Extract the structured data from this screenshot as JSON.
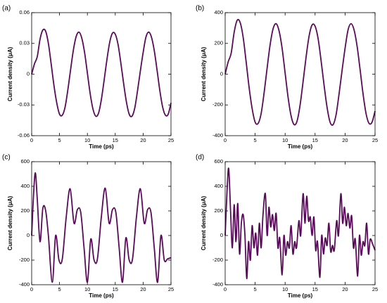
{
  "chart_data": [
    {
      "type": "line",
      "label": "(a)",
      "xlabel": "Time (ps)",
      "ylabel": "Current density (μA)",
      "color": "#5a0a5a",
      "x": [
        0,
        0.5,
        1,
        1.5,
        2,
        2.5,
        3,
        3.5,
        4,
        4.5,
        5,
        5.5,
        6,
        6.5,
        7,
        7.5,
        8,
        8.5,
        9,
        9.5,
        10,
        10.5,
        11,
        11.5,
        12,
        12.5,
        13,
        13.5,
        14,
        14.5,
        15,
        15.5,
        16,
        16.5,
        17,
        17.5,
        18,
        18.5,
        19,
        19.5,
        20,
        20.5,
        21,
        21.5,
        22,
        22.5,
        23,
        23.5,
        24,
        24.5,
        25
      ],
      "values": [
        0,
        0.01,
        0.017,
        0.034,
        0.043,
        0.042,
        0.03,
        0.01,
        -0.011,
        -0.028,
        -0.039,
        -0.04,
        -0.032,
        -0.015,
        0.005,
        0.024,
        0.037,
        0.041,
        0.035,
        0.021,
        0.001,
        -0.019,
        -0.034,
        -0.041,
        -0.038,
        -0.025,
        -0.006,
        0.014,
        0.031,
        0.04,
        0.039,
        0.029,
        0.011,
        -0.009,
        -0.027,
        -0.039,
        -0.041,
        -0.033,
        -0.016,
        0.003,
        0.021,
        0.036,
        0.041,
        0.036,
        0.023,
        0.004,
        -0.016,
        -0.032,
        -0.04,
        -0.039,
        -0.028
      ],
      "xlim": [
        0,
        25
      ],
      "xticks": [
        0,
        5,
        10,
        15,
        20,
        25
      ],
      "ylim": [
        -0.06,
        0.06
      ],
      "yticks": [
        0.06,
        0.03,
        0,
        -0.03,
        -0.06
      ]
    },
    {
      "type": "line",
      "label": "(b)",
      "xlabel": "Time (ps)",
      "ylabel": "Current density (μA)",
      "color": "#5a0a5a",
      "x": [
        0,
        0.5,
        1,
        1.5,
        2,
        2.5,
        3,
        3.5,
        4,
        4.5,
        5,
        5.5,
        6,
        6.5,
        7,
        7.5,
        8,
        8.5,
        9,
        9.5,
        10,
        10.5,
        11,
        11.5,
        12,
        12.5,
        13,
        13.5,
        14,
        14.5,
        15,
        15.5,
        16,
        16.5,
        17,
        17.5,
        18,
        18.5,
        19,
        19.5,
        20,
        20.5,
        21,
        21.5,
        22,
        22.5,
        23,
        23.5,
        24,
        24.5,
        25
      ],
      "values": [
        0,
        80,
        136,
        272,
        350,
        336,
        240,
        80,
        -88,
        -224,
        -312,
        -320,
        -256,
        -120,
        40,
        192,
        296,
        328,
        280,
        168,
        8,
        -152,
        -272,
        -328,
        -304,
        -200,
        -48,
        112,
        248,
        320,
        312,
        232,
        88,
        -72,
        -216,
        -312,
        -328,
        -264,
        -128,
        24,
        168,
        288,
        328,
        288,
        184,
        32,
        -128,
        -256,
        -320,
        -312,
        -240
      ],
      "xlim": [
        0,
        25
      ],
      "xticks": [
        0,
        5,
        10,
        15,
        20,
        25
      ],
      "ylim": [
        -400,
        400
      ],
      "yticks": [
        400,
        200,
        0,
        -200,
        -400
      ]
    },
    {
      "type": "line",
      "label": "(c)",
      "xlabel": "Time (ps)",
      "ylabel": "Current density (μA)",
      "color": "#5a0a5a",
      "x": [
        0,
        0.3,
        0.65,
        1.0,
        1.5,
        2.0,
        2.5,
        3.0,
        3.7,
        4.3,
        4.9,
        5.5,
        6.2,
        6.9,
        7.6,
        8.2,
        8.8,
        9.4,
        10.0,
        10.6,
        11.2,
        11.8,
        12.5,
        13.2,
        13.9,
        14.5,
        15.1,
        15.7,
        16.3,
        16.9,
        17.5,
        18.1,
        18.8,
        19.5,
        20.2,
        20.8,
        21.4,
        22.0,
        22.6,
        23.2,
        23.8,
        24.4,
        25.0
      ],
      "values": [
        0,
        300,
        510,
        300,
        -50,
        220,
        205,
        0,
        -380,
        0,
        -200,
        -190,
        150,
        380,
        100,
        210,
        190,
        -100,
        -380,
        -30,
        -200,
        -190,
        150,
        385,
        100,
        210,
        190,
        -100,
        -380,
        -20,
        -200,
        -190,
        150,
        380,
        100,
        210,
        190,
        -100,
        -380,
        0,
        -200,
        -190,
        -180
      ],
      "xlim": [
        0,
        25
      ],
      "xticks": [
        0,
        5,
        10,
        15,
        20,
        25
      ],
      "ylim": [
        -400,
        600
      ],
      "yticks": [
        600,
        400,
        200,
        0,
        -200,
        -400
      ]
    },
    {
      "type": "line",
      "label": "(d)",
      "xlabel": "Time (ps)",
      "ylabel": "Current density (μA)",
      "color": "#5a0a5a",
      "x": [
        0,
        0.35,
        0.6,
        0.9,
        1.2,
        1.5,
        1.8,
        2.1,
        2.4,
        2.7,
        3.0,
        3.3,
        3.6,
        3.9,
        4.2,
        4.5,
        4.8,
        5.1,
        5.4,
        5.7,
        6.0,
        6.3,
        6.7,
        7.0,
        7.3,
        7.6,
        7.9,
        8.2,
        8.5,
        8.8,
        9.1,
        9.5,
        9.8,
        10.1,
        10.4,
        10.7,
        11.0,
        11.3,
        11.6,
        11.9,
        12.3,
        12.6,
        13.0,
        13.3,
        13.6,
        13.9,
        14.2,
        14.5,
        14.8,
        15.1,
        15.4,
        15.8,
        16.1,
        16.4,
        16.7,
        17.0,
        17.3,
        17.6,
        17.9,
        18.2,
        18.6,
        18.9,
        19.3,
        19.6,
        19.9,
        20.2,
        20.5,
        20.8,
        21.1,
        21.4,
        21.7,
        22.1,
        22.4,
        22.7,
        23.0,
        23.3,
        23.6,
        23.9,
        24.2,
        24.6,
        25.0
      ],
      "values": [
        0,
        400,
        540,
        200,
        -100,
        250,
        -50,
        260,
        -150,
        100,
        170,
        0,
        -350,
        -50,
        -200,
        80,
        -100,
        20,
        -160,
        100,
        -100,
        160,
        340,
        0,
        230,
        70,
        170,
        40,
        180,
        -100,
        -20,
        -320,
        0,
        -160,
        -50,
        -100,
        80,
        -150,
        -50,
        -100,
        120,
        0,
        340,
        100,
        320,
        120,
        150,
        0,
        150,
        -120,
        -50,
        -340,
        0,
        -150,
        -20,
        -80,
        100,
        -130,
        -80,
        -120,
        120,
        0,
        340,
        100,
        230,
        80,
        180,
        60,
        160,
        -100,
        -30,
        -330,
        0,
        -160,
        -50,
        -80,
        100,
        -150,
        -30,
        -70,
        -120
      ],
      "xlim": [
        0,
        25
      ],
      "xticks": [
        0,
        5,
        10,
        15,
        20,
        25
      ],
      "ylim": [
        -400,
        600
      ],
      "yticks": [
        600,
        400,
        200,
        0,
        -200,
        -400
      ]
    }
  ]
}
